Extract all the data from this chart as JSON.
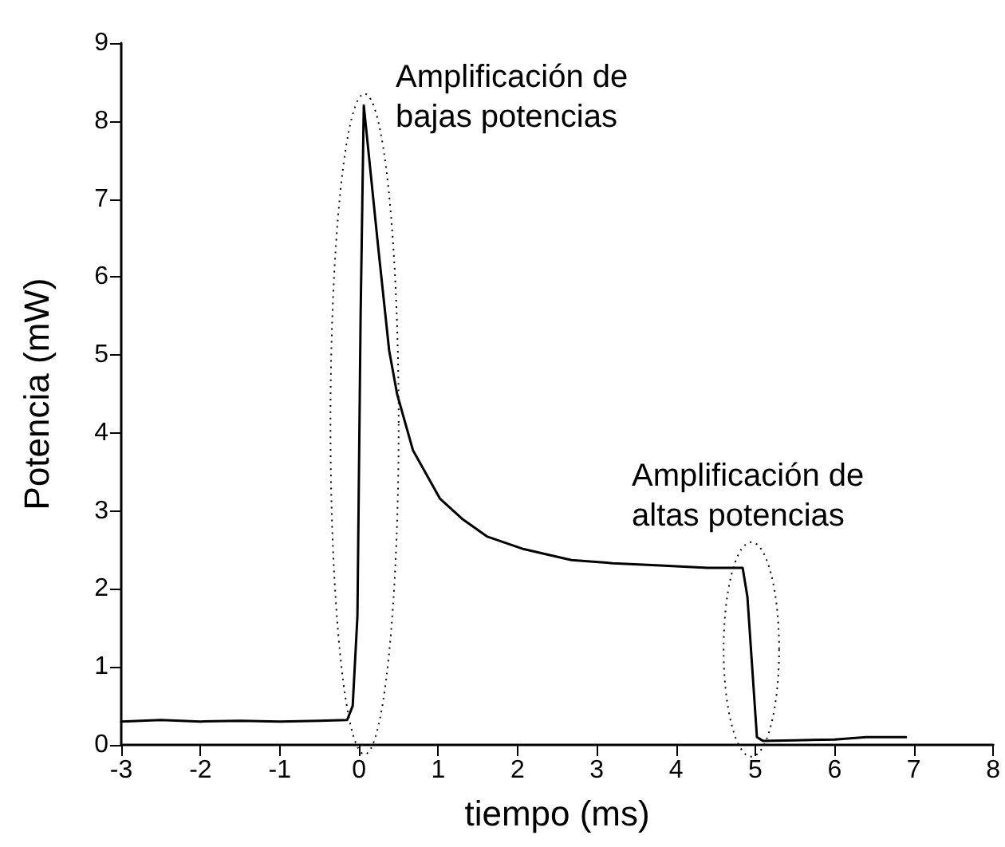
{
  "chart_data": {
    "type": "line",
    "xlabel": "tiempo (ms)",
    "ylabel": "Potencia (mW)",
    "x": [
      -3,
      -2.5,
      -2,
      -1.5,
      -1,
      -0.5,
      -0.15,
      -0.08,
      -0.02,
      0.02,
      0.06,
      0.15,
      0.24,
      0.38,
      0.48,
      0.68,
      1.02,
      1.3,
      1.62,
      2.08,
      2.68,
      3.2,
      3.8,
      4.4,
      4.84,
      4.9,
      5.02,
      5.1,
      5.5,
      6,
      6.4,
      6.9
    ],
    "series": [
      {
        "color": "#000000",
        "values": [
          0.3,
          0.32,
          0.3,
          0.31,
          0.3,
          0.31,
          0.32,
          0.5,
          1.65,
          5.5,
          8.2,
          7.3,
          6.4,
          5.06,
          4.5,
          3.78,
          3.16,
          2.9,
          2.67,
          2.51,
          2.37,
          2.33,
          2.3,
          2.27,
          2.27,
          1.9,
          0.1,
          0.05,
          0.06,
          0.07,
          0.1,
          0.1
        ]
      }
    ],
    "xlim": [
      -3,
      8
    ],
    "xticks": [
      -3,
      -2,
      -1,
      0,
      1,
      2,
      3,
      4,
      5,
      6,
      7,
      8
    ],
    "ylim": [
      0,
      9
    ],
    "yticks": [
      0,
      1,
      2,
      3,
      4,
      5,
      6,
      7,
      8,
      9
    ],
    "marker": "none",
    "line_style": "solid",
    "annotations": [
      "Amplificación de\nbajas potencias",
      "Amplificación de\naltas potencias"
    ]
  }
}
